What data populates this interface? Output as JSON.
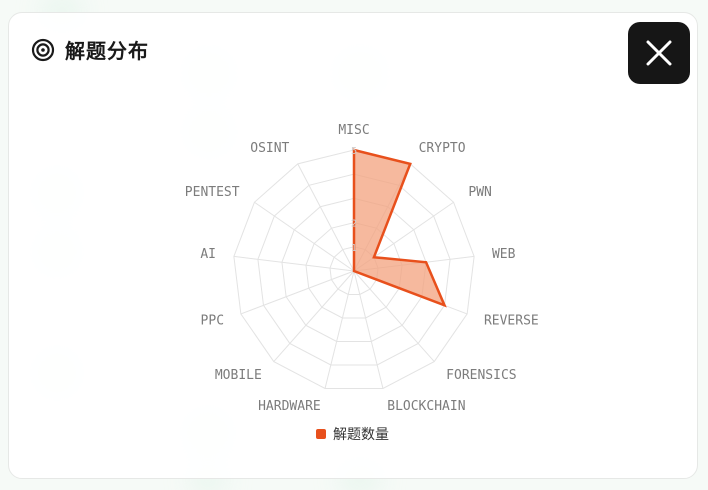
{
  "header": {
    "title": "解题分布",
    "icon": "target-icon"
  },
  "close_button": {
    "icon": "close-icon"
  },
  "colors": {
    "accent": "#e8501c",
    "fill": "#f3a27e",
    "grid": "#e3e3e3",
    "title": "#1a1a1a"
  },
  "chart_data": {
    "type": "radar",
    "categories": [
      "MISC",
      "CRYPTO",
      "PWN",
      "WEB",
      "REVERSE",
      "FORENSICS",
      "BLOCKCHAIN",
      "HARDWARE",
      "MOBILE",
      "PPC",
      "AI",
      "PENTEST",
      "OSINT"
    ],
    "series": [
      {
        "name": "解题数量",
        "values": [
          5,
          5,
          1,
          3,
          4,
          0,
          0,
          0,
          0,
          0,
          0,
          0,
          0
        ]
      }
    ],
    "rmax": 5,
    "ticks": [
      1,
      2,
      5
    ],
    "grid": true,
    "legend": "bottom"
  }
}
